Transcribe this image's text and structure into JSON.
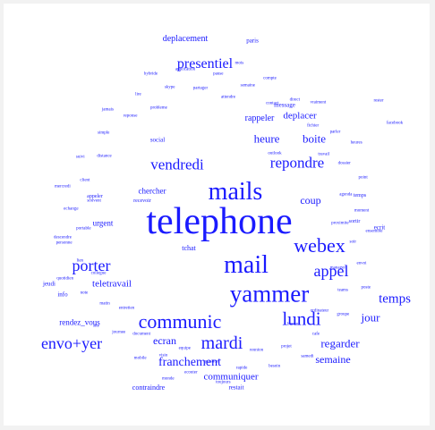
{
  "word_cloud": {
    "color": "#1a1aff",
    "words": [
      {
        "text": "telephone",
        "weight": 42
      },
      {
        "text": "mails",
        "weight": 28
      },
      {
        "text": "mail",
        "weight": 28
      },
      {
        "text": "yammer",
        "weight": 27
      },
      {
        "text": "webex",
        "weight": 22
      },
      {
        "text": "communic",
        "weight": 22
      },
      {
        "text": "lundi",
        "weight": 21
      },
      {
        "text": "mardi",
        "weight": 20
      },
      {
        "text": "appel",
        "weight": 18
      },
      {
        "text": "envo+yer",
        "weight": 18
      },
      {
        "text": "porter",
        "weight": 18
      },
      {
        "text": "vendredi",
        "weight": 17
      },
      {
        "text": "repondre",
        "weight": 17
      },
      {
        "text": "presentiel",
        "weight": 16
      },
      {
        "text": "temps",
        "weight": 15
      },
      {
        "text": "franchement",
        "weight": 14
      },
      {
        "text": "heure",
        "weight": 13
      },
      {
        "text": "boite",
        "weight": 13
      },
      {
        "text": "jour",
        "weight": 13
      },
      {
        "text": "coup",
        "weight": 12
      },
      {
        "text": "regarder",
        "weight": 13
      },
      {
        "text": "semaine",
        "weight": 12
      },
      {
        "text": "ecran",
        "weight": 12
      },
      {
        "text": "communiquer",
        "weight": 11
      },
      {
        "text": "teletravail",
        "weight": 11
      },
      {
        "text": "deplacer",
        "weight": 11
      },
      {
        "text": "deplacement",
        "weight": 10
      },
      {
        "text": "rappeler",
        "weight": 10
      },
      {
        "text": "chercher",
        "weight": 9
      },
      {
        "text": "urgent",
        "weight": 9
      },
      {
        "text": "rendez_vous",
        "weight": 9
      },
      {
        "text": "contraindre",
        "weight": 8
      },
      {
        "text": "ecrit",
        "weight": 7
      },
      {
        "text": "temps",
        "weight": 6
      },
      {
        "text": "message",
        "weight": 7
      },
      {
        "text": "paris",
        "weight": 7
      },
      {
        "text": "social",
        "weight": 7
      },
      {
        "text": "tchat",
        "weight": 8
      },
      {
        "text": "info",
        "weight": 7
      },
      {
        "text": "jeudi",
        "weight": 7
      },
      {
        "text": "restait",
        "weight": 7
      },
      {
        "text": "appeler",
        "weight": 6
      },
      {
        "text": "recevoir",
        "weight": 6
      },
      {
        "text": "descendre",
        "weight": 5
      },
      {
        "text": "sortir",
        "weight": 6
      },
      {
        "text": "facebook",
        "weight": 5
      },
      {
        "text": "outlook",
        "weight": 5
      },
      {
        "text": "rester",
        "weight": 5
      },
      {
        "text": "proximite",
        "weight": 5
      },
      {
        "text": "entretien",
        "weight": 5
      },
      {
        "text": "attendre",
        "weight": 5
      },
      {
        "text": "bureau",
        "weight": 5
      },
      {
        "text": "souvent",
        "weight": 5
      },
      {
        "text": "travail",
        "weight": 5
      },
      {
        "text": "equipe",
        "weight": 5
      },
      {
        "text": "probleme",
        "weight": 5
      },
      {
        "text": "manager",
        "weight": 5
      },
      {
        "text": "collegue",
        "weight": 5
      },
      {
        "text": "contact",
        "weight": 5
      },
      {
        "text": "reunion",
        "weight": 5
      },
      {
        "text": "distance",
        "weight": 5
      },
      {
        "text": "agenda",
        "weight": 5
      },
      {
        "text": "document",
        "weight": 5
      },
      {
        "text": "partager",
        "weight": 5
      },
      {
        "text": "ordinateur",
        "weight": 5
      },
      {
        "text": "portable",
        "weight": 5
      },
      {
        "text": "fichier",
        "weight": 5
      },
      {
        "text": "question",
        "weight": 5
      },
      {
        "text": "reponse",
        "weight": 5
      },
      {
        "text": "soir",
        "weight": 5
      },
      {
        "text": "matin",
        "weight": 5
      },
      {
        "text": "semaine",
        "weight": 5
      },
      {
        "text": "projet",
        "weight": 5
      },
      {
        "text": "client",
        "weight": 5
      },
      {
        "text": "dossier",
        "weight": 5
      },
      {
        "text": "visio",
        "weight": 5
      },
      {
        "text": "skype",
        "weight": 5
      },
      {
        "text": "teams",
        "weight": 5
      },
      {
        "text": "lien",
        "weight": 5
      },
      {
        "text": "direct",
        "weight": 5
      },
      {
        "text": "rapide",
        "weight": 5
      },
      {
        "text": "simple",
        "weight": 5
      },
      {
        "text": "moment",
        "weight": 5
      },
      {
        "text": "journee",
        "weight": 5
      },
      {
        "text": "pause",
        "weight": 5
      },
      {
        "text": "cafe",
        "weight": 5
      },
      {
        "text": "echange",
        "weight": 5
      },
      {
        "text": "parler",
        "weight": 5
      },
      {
        "text": "ecouter",
        "weight": 5
      },
      {
        "text": "lire",
        "weight": 5
      },
      {
        "text": "envoi",
        "weight": 5
      },
      {
        "text": "note",
        "weight": 5
      },
      {
        "text": "compte",
        "weight": 5
      },
      {
        "text": "besoin",
        "weight": 5
      },
      {
        "text": "suivi",
        "weight": 5
      },
      {
        "text": "point",
        "weight": 5
      },
      {
        "text": "mobile",
        "weight": 5
      },
      {
        "text": "application",
        "weight": 5
      },
      {
        "text": "groupe",
        "weight": 5
      },
      {
        "text": "personne",
        "weight": 5
      },
      {
        "text": "vraiment",
        "weight": 5
      },
      {
        "text": "toujours",
        "weight": 5
      },
      {
        "text": "jamais",
        "weight": 5
      },
      {
        "text": "ensemble",
        "weight": 5
      },
      {
        "text": "site",
        "weight": 5
      },
      {
        "text": "mois",
        "weight": 5
      },
      {
        "text": "samedi",
        "weight": 5
      },
      {
        "text": "mercredi",
        "weight": 5
      },
      {
        "text": "heures",
        "weight": 5
      },
      {
        "text": "monde",
        "weight": 5
      },
      {
        "text": "hybride",
        "weight": 5
      },
      {
        "text": "poste",
        "weight": 5
      },
      {
        "text": "quotidien",
        "weight": 5
      }
    ]
  }
}
